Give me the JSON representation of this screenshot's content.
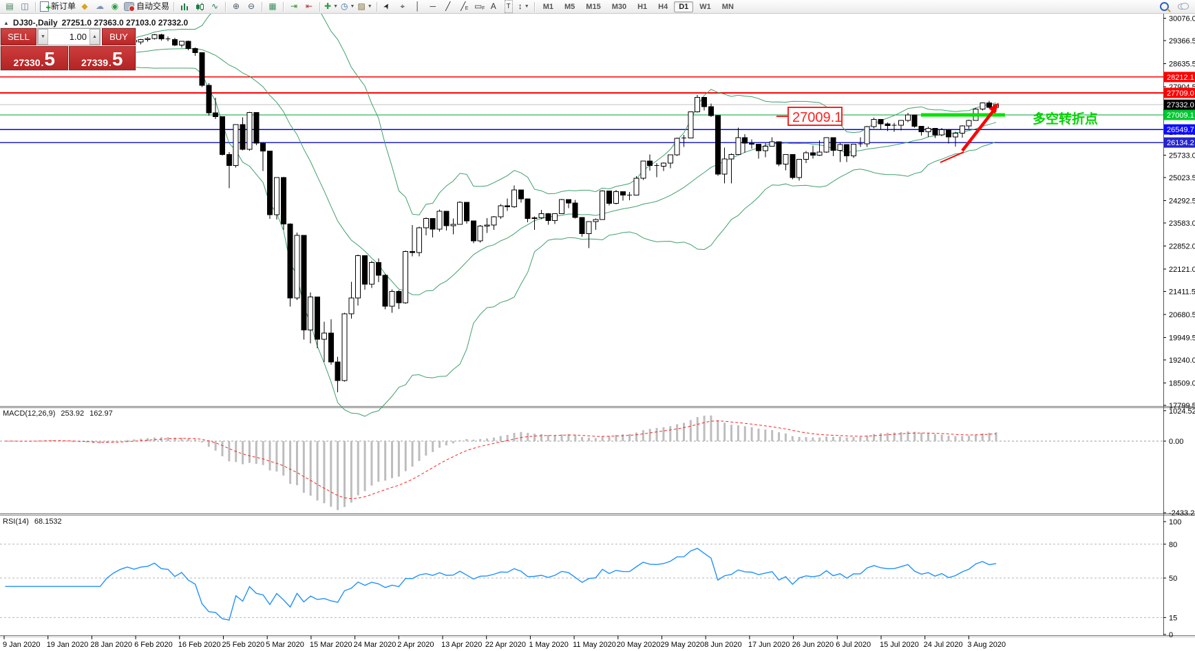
{
  "toolbar": {
    "groups": [
      [
        {
          "name": "terminal-icon",
          "kind": "glyph",
          "glyph": "▤",
          "color": "#3c7a50"
        },
        {
          "name": "chart-preview-icon",
          "kind": "glyph",
          "glyph": "◫",
          "color": "#55708f"
        }
      ],
      [
        {
          "name": "new-order-icon",
          "kind": "doc",
          "label": "新订单"
        },
        {
          "name": "history-icon",
          "kind": "glyph",
          "glyph": "◆",
          "color": "#d9a51f"
        },
        {
          "name": "community-icon",
          "kind": "glyph",
          "glyph": "☁",
          "color": "#7d93b8"
        },
        {
          "name": "signals-icon",
          "kind": "glyph",
          "glyph": "◉",
          "color": "#2f9e44"
        },
        {
          "name": "autotrading-icon",
          "kind": "auto",
          "label": "自动交易"
        }
      ],
      [
        {
          "name": "bar-chart-mode-icon",
          "kind": "bars"
        },
        {
          "name": "candlestick-mode-icon",
          "kind": "candle"
        },
        {
          "name": "line-chart-mode-icon",
          "kind": "glyph",
          "glyph": "∿",
          "color": "#1f7a46"
        }
      ],
      [
        {
          "name": "zoom-in-icon",
          "kind": "glyph",
          "glyph": "⊕",
          "color": "#4a5a66"
        },
        {
          "name": "zoom-out-icon",
          "kind": "glyph",
          "glyph": "⊖",
          "color": "#4a5a66"
        }
      ],
      [
        {
          "name": "tile-windows-icon",
          "kind": "glyph",
          "glyph": "▦",
          "color": "#3f8f5f"
        }
      ],
      [
        {
          "name": "auto-scroll-icon",
          "kind": "glyph",
          "glyph": "⇥",
          "color": "#2f8f2f"
        },
        {
          "name": "chart-shift-icon",
          "kind": "glyph",
          "glyph": "⇤",
          "color": "#b03030"
        }
      ],
      [
        {
          "name": "indicators-icon",
          "kind": "glyph",
          "glyph": "✚",
          "color": "#2f9e44",
          "caret": true
        },
        {
          "name": "periods-icon",
          "kind": "glyph",
          "glyph": "◷",
          "color": "#3b6ea5",
          "caret": true
        },
        {
          "name": "templates-icon",
          "kind": "glyph",
          "glyph": "▨",
          "color": "#7a6a3a",
          "caret": true
        }
      ],
      [
        {
          "name": "cursor-icon",
          "kind": "cursor",
          "glyph": "➤",
          "color": "#222"
        },
        {
          "name": "crosshair-icon",
          "kind": "glyph",
          "glyph": "⌖",
          "color": "#333"
        },
        {
          "name": "vertical-line-icon",
          "kind": "glyph",
          "glyph": "│",
          "color": "#333"
        },
        {
          "name": "horizontal-line-icon",
          "kind": "glyph",
          "glyph": "─",
          "color": "#333"
        },
        {
          "name": "trendline-icon",
          "kind": "glyph",
          "glyph": "╱",
          "color": "#333"
        },
        {
          "name": "equidistant-channel-icon",
          "kind": "sub",
          "glyph": "╱",
          "sub": "E",
          "color": "#333"
        },
        {
          "name": "fibonacci-icon",
          "kind": "sub",
          "glyph": "▭",
          "sub": "F",
          "color": "#333"
        },
        {
          "name": "text-icon",
          "kind": "glyph",
          "glyph": "A",
          "color": "#333"
        },
        {
          "name": "text-label-icon",
          "kind": "boxT",
          "glyph": "T"
        },
        {
          "name": "arrows-icon",
          "kind": "glyph",
          "glyph": "↕",
          "color": "#333",
          "caret": true
        }
      ]
    ],
    "timeframes": [
      "M1",
      "M5",
      "M15",
      "M30",
      "H1",
      "H4",
      "D1",
      "W1",
      "MN"
    ],
    "active_timeframe": "D1",
    "right_icons": [
      {
        "name": "search-icon"
      },
      {
        "name": "chat-icon"
      }
    ]
  },
  "symbol": {
    "title": "DJ30-,Daily",
    "ohlc_display": "27251.0 27363.0 27103.0 27332.0"
  },
  "trade": {
    "sell_label": "SELL",
    "buy_label": "BUY",
    "volume": "1.00",
    "sell_price_main": "27330",
    "sell_price_frac": "5",
    "buy_price_main": "27339",
    "buy_price_frac": "5",
    "decimal": "."
  },
  "macd": {
    "label": "MACD(12,26,9)",
    "value_main": "253.92",
    "value_signal": "162.97",
    "axis_ticks": [
      {
        "label": "1024.52",
        "value": 1024.52
      },
      {
        "label": "0.00",
        "value": 0
      },
      {
        "label": "-2433.25",
        "value": -2433.25
      }
    ]
  },
  "rsi": {
    "label": "RSI(14)",
    "value": "68.1532",
    "levels": [
      80,
      50,
      15
    ],
    "axis_ticks": [
      {
        "label": "100",
        "value": 100
      },
      {
        "label": "80",
        "value": 80
      },
      {
        "label": "50",
        "value": 50
      },
      {
        "label": "15",
        "value": 15
      },
      {
        "label": "0",
        "value": 0
      }
    ]
  },
  "chart_data": {
    "type": "candlestick",
    "symbol": "DJ30-,Daily",
    "y_axis_ticks": [
      30076.0,
      29366.5,
      28635.5,
      27904.5,
      27173.5,
      26464.0,
      25733.0,
      25023.5,
      24292.5,
      23583.0,
      22852.0,
      22121.0,
      21411.5,
      20680.5,
      19949.5,
      19240.0,
      18509.0,
      17799.5
    ],
    "x_axis_labels": [
      "9 Jan 2020",
      "19 Jan 2020",
      "28 Jan 2020",
      "6 Feb 2020",
      "16 Feb 2020",
      "25 Feb 2020",
      "5 Mar 2020",
      "15 Mar 2020",
      "24 Mar 2020",
      "2 Apr 2020",
      "13 Apr 2020",
      "22 Apr 2020",
      "1 May 2020",
      "11 May 2020",
      "20 May 2020",
      "29 May 2020",
      "8 Jun 2020",
      "17 Jun 2020",
      "26 Jun 2020",
      "6 Jul 2020",
      "15 Jul 2020",
      "24 Jul 2020",
      "3 Aug 2020"
    ],
    "overlays": {
      "bollinger": {
        "period": 20,
        "deviation": 2,
        "color": "#3fa06a"
      }
    },
    "horizontal_lines": [
      {
        "price": 27332.0,
        "label": "27332.0",
        "color": "#c0c0c0",
        "tag": "#000000",
        "width": 1,
        "current": true
      },
      {
        "price": 28212.1,
        "label": "28212.1",
        "color": "#ff0000",
        "tag": "#ff0000",
        "width": 1.6
      },
      {
        "price": 27709.0,
        "label": "27709.0",
        "color": "#ff0000",
        "tag": "#ff0000",
        "width": 1.6
      },
      {
        "price": 27009.1,
        "label": "27009.1",
        "color": "#00a030",
        "tag": "#00c832",
        "width": 1.3
      },
      {
        "price": 26549.7,
        "label": "26549.7",
        "color": "#0000ff",
        "tag": "#0d0dff",
        "width": 1.6
      },
      {
        "price": 26134.2,
        "label": "26134.2",
        "color": "#2222cc",
        "tag": "#2424d0",
        "width": 1.6
      }
    ],
    "annotations": {
      "price_callout": {
        "text": "27009.1",
        "color": "#ff2020"
      },
      "turning_point_text": {
        "text": "多空转折点",
        "color": "#00d400"
      },
      "highlight_bar_color": "#00e400",
      "arrow_color": "#ff0000"
    },
    "ohlc": [
      [
        28900,
        29010,
        28850,
        28990
      ],
      [
        28990,
        29040,
        28880,
        28920
      ],
      [
        28920,
        29010,
        28860,
        28940
      ],
      [
        28940,
        29030,
        28900,
        29010
      ],
      [
        29010,
        29110,
        28960,
        29090
      ],
      [
        29090,
        29180,
        29030,
        29150
      ],
      [
        29150,
        29220,
        29080,
        29190
      ],
      [
        29190,
        29250,
        29110,
        29140
      ],
      [
        29140,
        29200,
        28990,
        29030
      ],
      [
        29030,
        29060,
        28520,
        28550
      ],
      [
        28550,
        28790,
        28470,
        28730
      ],
      [
        28730,
        28920,
        28680,
        28870
      ],
      [
        28870,
        28950,
        28720,
        28780
      ],
      [
        28780,
        28850,
        28450,
        28540
      ],
      [
        28540,
        28760,
        28500,
        28720
      ],
      [
        28720,
        29000,
        28700,
        28970
      ],
      [
        28970,
        29180,
        28950,
        29150
      ],
      [
        29150,
        29310,
        29130,
        29290
      ],
      [
        29290,
        29400,
        29240,
        29380
      ],
      [
        29380,
        29430,
        29280,
        29320
      ],
      [
        29320,
        29420,
        29250,
        29400
      ],
      [
        29400,
        29480,
        29330,
        29430
      ],
      [
        29430,
        29570,
        29400,
        29550
      ],
      [
        29550,
        29590,
        29370,
        29420
      ],
      [
        29420,
        29500,
        29350,
        29400
      ],
      [
        29400,
        29450,
        29190,
        29220
      ],
      [
        29220,
        29350,
        29150,
        29340
      ],
      [
        29340,
        29370,
        29060,
        29120
      ],
      [
        29120,
        29150,
        28890,
        28990
      ],
      [
        28990,
        29000,
        27890,
        27950
      ],
      [
        27950,
        28010,
        26990,
        27080
      ],
      [
        27080,
        27550,
        26880,
        26950
      ],
      [
        26950,
        26970,
        25720,
        25760
      ],
      [
        25760,
        25830,
        24680,
        25400
      ],
      [
        25400,
        26710,
        25340,
        26700
      ],
      [
        26700,
        26930,
        25890,
        25920
      ],
      [
        25920,
        27110,
        25870,
        27090
      ],
      [
        27090,
        27100,
        26050,
        26120
      ],
      [
        26120,
        26150,
        25230,
        25860
      ],
      [
        25860,
        25870,
        23710,
        23850
      ],
      [
        23850,
        25030,
        23690,
        25020
      ],
      [
        25020,
        25040,
        23360,
        23550
      ],
      [
        23550,
        23570,
        20930,
        21200
      ],
      [
        21200,
        23280,
        21140,
        23190
      ],
      [
        23190,
        23190,
        19880,
        20190
      ],
      [
        20190,
        21380,
        19760,
        21240
      ],
      [
        21240,
        21250,
        19610,
        19900
      ],
      [
        19900,
        20450,
        19170,
        20090
      ],
      [
        20090,
        20530,
        19090,
        19170
      ],
      [
        19170,
        19340,
        18210,
        18590
      ],
      [
        18590,
        20740,
        18550,
        20700
      ],
      [
        20700,
        21720,
        20550,
        21200
      ],
      [
        21200,
        22580,
        20960,
        22550
      ],
      [
        22550,
        22560,
        21470,
        21640
      ],
      [
        21640,
        22380,
        21520,
        22330
      ],
      [
        22330,
        22460,
        21710,
        21920
      ],
      [
        21920,
        21960,
        20840,
        20940
      ],
      [
        20940,
        21480,
        20740,
        21410
      ],
      [
        21410,
        21460,
        20860,
        21050
      ],
      [
        21050,
        22710,
        21020,
        22680
      ],
      [
        22680,
        23520,
        22520,
        22650
      ],
      [
        22650,
        23460,
        22530,
        23430
      ],
      [
        23430,
        23760,
        23190,
        23720
      ],
      [
        23720,
        23730,
        23130,
        23390
      ],
      [
        23390,
        24010,
        23310,
        23950
      ],
      [
        23950,
        23960,
        23340,
        23500
      ],
      [
        23500,
        23730,
        23220,
        23540
      ],
      [
        23540,
        24270,
        23530,
        24240
      ],
      [
        24240,
        24250,
        23560,
        23650
      ],
      [
        23650,
        23660,
        22940,
        23020
      ],
      [
        23020,
        23520,
        22960,
        23480
      ],
      [
        23480,
        23740,
        23270,
        23520
      ],
      [
        23520,
        23800,
        23370,
        23780
      ],
      [
        23780,
        24180,
        23710,
        24130
      ],
      [
        24130,
        24360,
        23960,
        24100
      ],
      [
        24100,
        24770,
        24060,
        24630
      ],
      [
        24630,
        24640,
        24230,
        24350
      ],
      [
        24350,
        24360,
        23610,
        23720
      ],
      [
        23720,
        23790,
        23360,
        23750
      ],
      [
        23750,
        24000,
        23700,
        23880
      ],
      [
        23880,
        23900,
        23530,
        23660
      ],
      [
        23660,
        23890,
        23550,
        23880
      ],
      [
        23880,
        24350,
        23870,
        24330
      ],
      [
        24330,
        24340,
        24050,
        24220
      ],
      [
        24220,
        24310,
        23730,
        23760
      ],
      [
        23760,
        23770,
        23150,
        23250
      ],
      [
        23250,
        23640,
        22790,
        23630
      ],
      [
        23630,
        23730,
        23370,
        23690
      ],
      [
        23690,
        24620,
        23680,
        24600
      ],
      [
        24600,
        24610,
        24140,
        24210
      ],
      [
        24210,
        24630,
        24170,
        24580
      ],
      [
        24580,
        24590,
        24290,
        24470
      ],
      [
        24470,
        24560,
        24300,
        24470
      ],
      [
        24470,
        25070,
        24460,
        25000
      ],
      [
        25000,
        25560,
        24950,
        25550
      ],
      [
        25550,
        25760,
        25240,
        25400
      ],
      [
        25400,
        25480,
        25030,
        25380
      ],
      [
        25380,
        25500,
        25230,
        25480
      ],
      [
        25480,
        25750,
        25320,
        25740
      ],
      [
        25740,
        26290,
        25710,
        26270
      ],
      [
        26270,
        26380,
        25990,
        26280
      ],
      [
        26280,
        27120,
        26280,
        27110
      ],
      [
        27110,
        27640,
        27090,
        27570
      ],
      [
        27570,
        27580,
        27150,
        27270
      ],
      [
        27270,
        27370,
        26940,
        26990
      ],
      [
        26990,
        27000,
        25080,
        25130
      ],
      [
        25130,
        25970,
        24840,
        25610
      ],
      [
        25610,
        25790,
        24840,
        25760
      ],
      [
        25760,
        26610,
        25740,
        26290
      ],
      [
        26290,
        26400,
        25810,
        26120
      ],
      [
        26120,
        26230,
        25940,
        26080
      ],
      [
        26080,
        26090,
        25620,
        25870
      ],
      [
        25870,
        26120,
        25670,
        26020
      ],
      [
        26020,
        26300,
        26010,
        26160
      ],
      [
        26160,
        26170,
        25380,
        25450
      ],
      [
        25450,
        25760,
        25250,
        25750
      ],
      [
        25750,
        25760,
        24970,
        25020
      ],
      [
        25020,
        25600,
        24920,
        25600
      ],
      [
        25600,
        25860,
        25480,
        25810
      ],
      [
        25810,
        26040,
        25620,
        25730
      ],
      [
        25730,
        26200,
        25710,
        25830
      ],
      [
        25830,
        26290,
        25810,
        26290
      ],
      [
        26290,
        26300,
        25700,
        25890
      ],
      [
        25890,
        26110,
        25520,
        26070
      ],
      [
        26070,
        26080,
        25520,
        25710
      ],
      [
        25710,
        26090,
        25650,
        26080
      ],
      [
        26080,
        26300,
        25990,
        26090
      ],
      [
        26090,
        26660,
        25990,
        26640
      ],
      [
        26640,
        26920,
        26580,
        26870
      ],
      [
        26870,
        26880,
        26550,
        26730
      ],
      [
        26730,
        26770,
        26500,
        26670
      ],
      [
        26670,
        26760,
        26480,
        26680
      ],
      [
        26680,
        26850,
        26520,
        26840
      ],
      [
        26840,
        27070,
        26780,
        27010
      ],
      [
        27010,
        27020,
        26610,
        26650
      ],
      [
        26650,
        26660,
        26360,
        26470
      ],
      [
        26470,
        26640,
        26310,
        26580
      ],
      [
        26580,
        26590,
        26280,
        26380
      ],
      [
        26380,
        26600,
        26330,
        26540
      ],
      [
        26540,
        26550,
        26100,
        26310
      ],
      [
        26310,
        26480,
        26010,
        26430
      ],
      [
        26430,
        26680,
        26290,
        26660
      ],
      [
        26660,
        26860,
        26570,
        26830
      ],
      [
        26830,
        27230,
        26820,
        27200
      ],
      [
        27200,
        27400,
        27150,
        27390
      ],
      [
        27390,
        27460,
        27230,
        27251
      ],
      [
        27251,
        27363,
        27103,
        27332
      ]
    ]
  }
}
